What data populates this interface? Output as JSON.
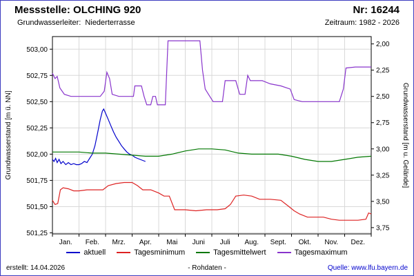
{
  "header": {
    "station_label": "Messstelle: OLCHING 920",
    "number_label": "Nr: 16244",
    "aquifer_label": "Grundwasserleiter:  Niederterrasse",
    "period_label": "Zeitraum: 1982 - 2026"
  },
  "footer": {
    "created": "erstellt: 14.04.2026",
    "center": "- Rohdaten -",
    "source": "Quelle: www.lfu.bayern.de"
  },
  "chart_data": {
    "type": "line",
    "title": "",
    "ylabel_left": "Grundwasserstand [m ü. NN]",
    "ylabel_right": "Grundwasserstand [m u. Gelände]",
    "xlabel": "",
    "grid": true,
    "legend_position": "bottom",
    "ylim": [
      501.24,
      503.12
    ],
    "ground_level": 505.05,
    "x_months": [
      "Jan.",
      "Feb.",
      "Mrz.",
      "Apr.",
      "Mai",
      "Juni",
      "Juli",
      "Aug.",
      "Sept.",
      "Okt.",
      "Nov.",
      "Dez."
    ],
    "yticks_left": [
      {
        "v": 503.0,
        "label": "503,00"
      },
      {
        "v": 502.75,
        "label": "502,75"
      },
      {
        "v": 502.5,
        "label": "502,50"
      },
      {
        "v": 502.25,
        "label": "502,25"
      },
      {
        "v": 502.0,
        "label": "502,00"
      },
      {
        "v": 501.75,
        "label": "501,75"
      },
      {
        "v": 501.5,
        "label": "501,50"
      },
      {
        "v": 501.25,
        "label": "501,25"
      }
    ],
    "yticks_right": [
      {
        "d": 2.0,
        "label": "2,00"
      },
      {
        "d": 2.25,
        "label": "2,25"
      },
      {
        "d": 2.5,
        "label": "2,50"
      },
      {
        "d": 2.75,
        "label": "2,75"
      },
      {
        "d": 3.0,
        "label": "3,00"
      },
      {
        "d": 3.25,
        "label": "3,25"
      },
      {
        "d": 3.5,
        "label": "3,50"
      },
      {
        "d": 3.75,
        "label": "3,75"
      }
    ],
    "series": [
      {
        "name": "aktuell",
        "color": "#0000cc",
        "points": [
          [
            0.0,
            501.95
          ],
          [
            0.06,
            501.93
          ],
          [
            0.12,
            501.96
          ],
          [
            0.18,
            501.92
          ],
          [
            0.25,
            501.95
          ],
          [
            0.32,
            501.91
          ],
          [
            0.4,
            501.93
          ],
          [
            0.5,
            501.9
          ],
          [
            0.6,
            501.92
          ],
          [
            0.7,
            501.9
          ],
          [
            0.8,
            501.91
          ],
          [
            0.9,
            501.9
          ],
          [
            1.0,
            501.9
          ],
          [
            1.1,
            501.91
          ],
          [
            1.2,
            501.93
          ],
          [
            1.3,
            501.92
          ],
          [
            1.4,
            501.96
          ],
          [
            1.5,
            502.0
          ],
          [
            1.6,
            502.08
          ],
          [
            1.7,
            502.2
          ],
          [
            1.8,
            502.33
          ],
          [
            1.88,
            502.41
          ],
          [
            1.93,
            502.43
          ],
          [
            2.0,
            502.39
          ],
          [
            2.1,
            502.33
          ],
          [
            2.2,
            502.27
          ],
          [
            2.3,
            502.21
          ],
          [
            2.4,
            502.16
          ],
          [
            2.5,
            502.12
          ],
          [
            2.6,
            502.08
          ],
          [
            2.7,
            502.05
          ],
          [
            2.8,
            502.02
          ],
          [
            2.9,
            502.0
          ],
          [
            3.0,
            501.99
          ],
          [
            3.1,
            501.97
          ],
          [
            3.2,
            501.96
          ],
          [
            3.3,
            501.95
          ],
          [
            3.4,
            501.94
          ],
          [
            3.5,
            501.93
          ]
        ]
      },
      {
        "name": "Tagesminimum",
        "color": "#dd2222",
        "points": [
          [
            0.0,
            501.56
          ],
          [
            0.1,
            501.52
          ],
          [
            0.2,
            501.53
          ],
          [
            0.3,
            501.66
          ],
          [
            0.4,
            501.68
          ],
          [
            0.6,
            501.67
          ],
          [
            0.8,
            501.65
          ],
          [
            1.0,
            501.65
          ],
          [
            1.3,
            501.66
          ],
          [
            1.6,
            501.66
          ],
          [
            1.9,
            501.66
          ],
          [
            2.1,
            501.7
          ],
          [
            2.4,
            501.72
          ],
          [
            2.7,
            501.73
          ],
          [
            3.0,
            501.73
          ],
          [
            3.2,
            501.7
          ],
          [
            3.4,
            501.66
          ],
          [
            3.7,
            501.66
          ],
          [
            4.0,
            501.63
          ],
          [
            4.2,
            501.6
          ],
          [
            4.4,
            501.6
          ],
          [
            4.6,
            501.47
          ],
          [
            5.0,
            501.47
          ],
          [
            5.4,
            501.46
          ],
          [
            5.8,
            501.47
          ],
          [
            6.2,
            501.47
          ],
          [
            6.5,
            501.48
          ],
          [
            6.7,
            501.52
          ],
          [
            6.9,
            501.6
          ],
          [
            7.2,
            501.61
          ],
          [
            7.5,
            501.6
          ],
          [
            7.8,
            501.57
          ],
          [
            8.2,
            501.57
          ],
          [
            8.6,
            501.56
          ],
          [
            8.9,
            501.5
          ],
          [
            9.1,
            501.46
          ],
          [
            9.3,
            501.43
          ],
          [
            9.6,
            501.4
          ],
          [
            9.9,
            501.4
          ],
          [
            10.2,
            501.4
          ],
          [
            10.5,
            501.38
          ],
          [
            10.8,
            501.37
          ],
          [
            11.2,
            501.37
          ],
          [
            11.5,
            501.37
          ],
          [
            11.8,
            501.38
          ],
          [
            11.9,
            501.44
          ],
          [
            12.0,
            501.43
          ]
        ]
      },
      {
        "name": "Tagesmittelwert",
        "color": "#007700",
        "points": [
          [
            0.0,
            502.02
          ],
          [
            0.5,
            502.02
          ],
          [
            1.0,
            502.02
          ],
          [
            1.5,
            502.01
          ],
          [
            2.0,
            502.01
          ],
          [
            2.5,
            502.0
          ],
          [
            3.0,
            501.99
          ],
          [
            3.5,
            501.98
          ],
          [
            4.0,
            501.98
          ],
          [
            4.5,
            502.0
          ],
          [
            5.0,
            502.03
          ],
          [
            5.5,
            502.05
          ],
          [
            6.0,
            502.05
          ],
          [
            6.5,
            502.04
          ],
          [
            7.0,
            502.01
          ],
          [
            7.5,
            502.0
          ],
          [
            8.0,
            502.0
          ],
          [
            8.5,
            502.0
          ],
          [
            9.0,
            501.98
          ],
          [
            9.5,
            501.95
          ],
          [
            10.0,
            501.93
          ],
          [
            10.5,
            501.93
          ],
          [
            11.0,
            501.95
          ],
          [
            11.5,
            501.97
          ],
          [
            12.0,
            501.98
          ]
        ]
      },
      {
        "name": "Tagesmaximum",
        "color": "#8833cc",
        "points": [
          [
            0.0,
            502.77
          ],
          [
            0.1,
            502.72
          ],
          [
            0.18,
            502.74
          ],
          [
            0.28,
            502.63
          ],
          [
            0.45,
            502.57
          ],
          [
            0.7,
            502.55
          ],
          [
            1.0,
            502.55
          ],
          [
            1.4,
            502.55
          ],
          [
            1.8,
            502.55
          ],
          [
            1.95,
            502.6
          ],
          [
            2.05,
            502.78
          ],
          [
            2.15,
            502.72
          ],
          [
            2.25,
            502.57
          ],
          [
            2.5,
            502.55
          ],
          [
            2.8,
            502.55
          ],
          [
            3.05,
            502.55
          ],
          [
            3.1,
            502.65
          ],
          [
            3.35,
            502.65
          ],
          [
            3.45,
            502.55
          ],
          [
            3.55,
            502.47
          ],
          [
            3.7,
            502.47
          ],
          [
            3.78,
            502.55
          ],
          [
            3.88,
            502.55
          ],
          [
            3.95,
            502.47
          ],
          [
            4.25,
            502.47
          ],
          [
            4.35,
            503.08
          ],
          [
            4.8,
            503.08
          ],
          [
            5.3,
            503.08
          ],
          [
            5.55,
            503.08
          ],
          [
            5.65,
            502.8
          ],
          [
            5.75,
            502.62
          ],
          [
            5.9,
            502.56
          ],
          [
            6.05,
            502.5
          ],
          [
            6.4,
            502.5
          ],
          [
            6.5,
            502.7
          ],
          [
            6.9,
            502.7
          ],
          [
            7.05,
            502.57
          ],
          [
            7.25,
            502.57
          ],
          [
            7.35,
            502.75
          ],
          [
            7.45,
            502.7
          ],
          [
            7.9,
            502.7
          ],
          [
            8.2,
            502.67
          ],
          [
            8.6,
            502.65
          ],
          [
            8.95,
            502.62
          ],
          [
            9.1,
            502.52
          ],
          [
            9.4,
            502.5
          ],
          [
            9.9,
            502.5
          ],
          [
            10.4,
            502.5
          ],
          [
            10.8,
            502.5
          ],
          [
            10.95,
            502.62
          ],
          [
            11.05,
            502.82
          ],
          [
            11.4,
            502.83
          ],
          [
            11.7,
            502.83
          ],
          [
            12.0,
            502.83
          ]
        ]
      }
    ]
  }
}
